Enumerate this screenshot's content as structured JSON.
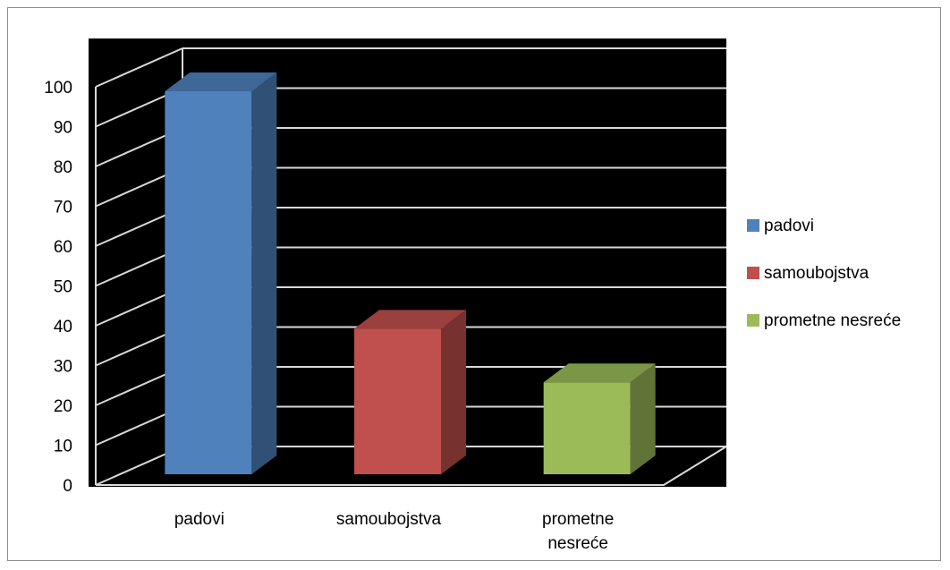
{
  "chart_data": {
    "type": "bar",
    "style": "3d-column",
    "categories": [
      "padovi",
      "samoubojstva",
      "prometne nesreće"
    ],
    "category_lines": [
      [
        "padovi"
      ],
      [
        "samoubojstva"
      ],
      [
        "prometne",
        "nesreće"
      ]
    ],
    "series": [
      {
        "name": "padovi",
        "color": "#4f81bd",
        "values": [
          100,
          null,
          null
        ]
      },
      {
        "name": "samoubojstva",
        "color": "#c0504d",
        "values": [
          null,
          38,
          null
        ]
      },
      {
        "name": "prometne nesreće",
        "color": "#9bbb59",
        "values": [
          null,
          null,
          24
        ]
      }
    ],
    "values": [
      100,
      38,
      24
    ],
    "colors": [
      "#4f81bd",
      "#c0504d",
      "#9bbb59"
    ],
    "ylim": [
      0,
      100
    ],
    "yticks": [
      0,
      10,
      20,
      30,
      40,
      50,
      60,
      70,
      80,
      90,
      100
    ],
    "grid": true,
    "legend": {
      "position": "right",
      "entries": [
        "padovi",
        "samoubojstva",
        "prometne nesreće"
      ]
    },
    "plot_background": "#000000",
    "title": "",
    "xlabel": "",
    "ylabel": ""
  }
}
